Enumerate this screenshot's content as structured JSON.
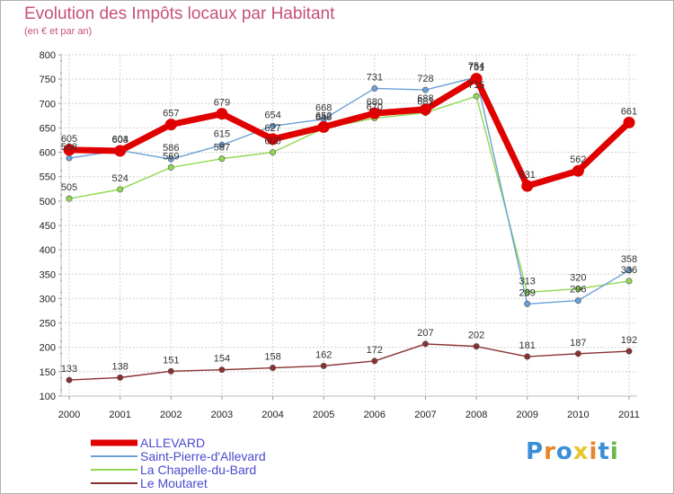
{
  "header": {
    "title": "Evolution des Impôts locaux par Habitant",
    "subtitle": "(en € et par an)"
  },
  "logo": {
    "letters": [
      "P",
      "r",
      "o",
      "x",
      "i",
      "t",
      "i"
    ],
    "colors": [
      "#3a8fd8",
      "#e8862a",
      "#3a8fd8",
      "#e8c62a",
      "#e8862a",
      "#3a8fd8",
      "#6ab84a"
    ]
  },
  "chart_data": {
    "type": "line",
    "title": "Evolution des Impôts locaux par Habitant",
    "subtitle": "(en € et par an)",
    "xlabel": "",
    "ylabel": "",
    "ylim": [
      100,
      800
    ],
    "yticks": [
      100,
      150,
      200,
      250,
      300,
      350,
      400,
      450,
      500,
      550,
      600,
      650,
      700,
      750,
      800
    ],
    "grid": true,
    "legend_position": "bottom-left",
    "categories": [
      "2000",
      "2001",
      "2002",
      "2003",
      "2004",
      "2005",
      "2006",
      "2007",
      "2008",
      "2009",
      "2010",
      "2011"
    ],
    "series": [
      {
        "name": "ALLEVARD",
        "color": "#e00000",
        "values": [
          605,
          603,
          657,
          679,
          627,
          652,
          680,
          688,
          751,
          531,
          562,
          661
        ],
        "labels": [
          "605",
          "603",
          "657",
          "679",
          "627",
          "652",
          "680",
          "688",
          "751",
          "531",
          "562",
          "661"
        ]
      },
      {
        "name": "Saint-Pierre-d'Allevard",
        "color": "#6aa0d8",
        "values": [
          588,
          604,
          586,
          615,
          654,
          668,
          731,
          728,
          754,
          289,
          296,
          358
        ],
        "labels": [
          "588",
          "604",
          "586",
          "615",
          "654",
          "668",
          "731",
          "728",
          "754",
          "289",
          "296",
          "358"
        ]
      },
      {
        "name": "La Chapelle-du-Bard",
        "color": "#90d850",
        "values": [
          505,
          524,
          569,
          587,
          600,
          649,
          670,
          681,
          715,
          313,
          320,
          336
        ],
        "labels": [
          "505",
          "524",
          "569",
          "587",
          "600",
          "649",
          "670",
          "681",
          "715",
          "313",
          "320",
          "336"
        ]
      },
      {
        "name": "Le Moutaret",
        "color": "#8a3030",
        "values": [
          133,
          138,
          151,
          154,
          158,
          162,
          172,
          207,
          202,
          181,
          187,
          192
        ],
        "labels": [
          "133",
          "138",
          "151",
          "154",
          "158",
          "162",
          "172",
          "207",
          "202",
          "181",
          "187",
          "192"
        ]
      }
    ]
  }
}
